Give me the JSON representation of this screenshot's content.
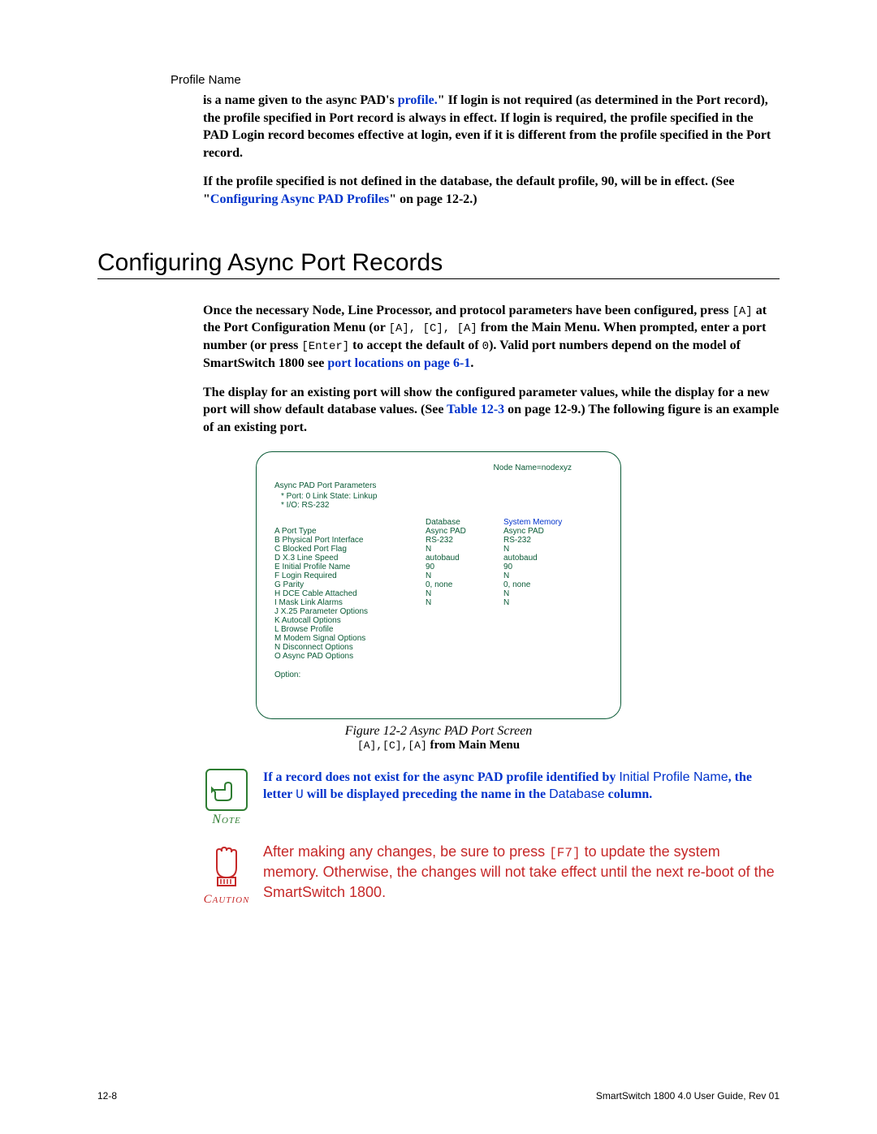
{
  "profileName": {
    "label": "Profile Name",
    "para1_a": "is a name given to the async PAD's",
    "para1_profile": " profile.",
    "para1_b": "\" If login is not required (as determined in the Port record), the profile specified in Port record is always in effect. If login is required, the profile specified in the PAD Login record becomes effective at login, even if it is different from the profile specified in the Port record.",
    "para2_a": "If the profile specified is not defined in the database, the default profile,",
    "para2_90": " 90",
    "para2_b": ", will be in effect. (See \"",
    "para2_link": "Configuring Async PAD Profiles",
    "para2_c": "\" on page 12-2.)"
  },
  "section": {
    "title": "Configuring Async Port Records",
    "p1_a": "Once the necessary Node, Line Processor, and protocol parameters have been configured, press ",
    "p1_key1": "[A]",
    "p1_b": " at the Port Configuration Menu (or ",
    "p1_key2": "[A], [C], [A]",
    "p1_c": " from the Main Menu. When prompted, enter a port number (or press ",
    "p1_key3": "[Enter]",
    "p1_d": " to accept the default of ",
    "p1_zero": "0",
    "p1_e": "). Valid port numbers depend on the model of SmartSwitch 1800 see ",
    "p1_link": "port locations on page 6-1",
    "p1_f": ".",
    "p2_a": "The display for an existing port will show the configured parameter values, while the display for a new port will show default database values. (See ",
    "p2_link": "Table 12-3",
    "p2_b": " on page 12-9.) The following figure is an example of an existing port."
  },
  "terminal": {
    "node": "Node Name=nodexyz",
    "title": "Async PAD Port Parameters",
    "sub1": "*   Port:  0    Link State:  Linkup",
    "sub2": "*   I/O: RS-232",
    "hdr_db": "Database",
    "hdr_sm": "System Memory",
    "rows": [
      {
        "k": "A",
        "l": "Port Type",
        "d": "Async PAD",
        "s": "Async PAD"
      },
      {
        "k": "B",
        "l": "Physical Port Interface",
        "d": "RS-232",
        "s": "RS-232"
      },
      {
        "k": "C",
        "l": "Blocked Port Flag",
        "d": "N",
        "s": "N"
      },
      {
        "k": "D",
        "l": "X.3 Line Speed",
        "d": " autobaud",
        "s": " autobaud"
      },
      {
        "k": "E",
        "l": "Initial Profile Name",
        "d": "90",
        "s": "90"
      },
      {
        "k": "F",
        "l": "Login Required",
        "d": "N",
        "s": "N"
      },
      {
        "k": "G",
        "l": "Parity",
        "d": "0, none",
        "s": "0, none"
      },
      {
        "k": "H",
        "l": "DCE Cable Attached",
        "d": " N",
        "s": "N"
      },
      {
        "k": "I",
        "l": "Mask Link Alarms",
        "d": "N",
        "s": "N"
      },
      {
        "k": "J",
        "l": "X.25 Parameter Options",
        "d": "",
        "s": ""
      },
      {
        "k": "K",
        "l": "Autocall Options",
        "d": "",
        "s": ""
      },
      {
        "k": "L",
        "l": "Browse Profile",
        "d": "",
        "s": ""
      },
      {
        "k": "M",
        "l": "Modem Signal Options",
        "d": "",
        "s": ""
      },
      {
        "k": "N",
        "l": "Disconnect Options",
        "d": "",
        "s": ""
      },
      {
        "k": "O",
        "l": "Async PAD Options",
        "d": "",
        "s": ""
      }
    ],
    "option": "Option:"
  },
  "figure": {
    "caption": "Figure 12-2   Async PAD Port Screen",
    "sub_keys": "[A],[C],[A]",
    "sub_tail": " from Main Menu"
  },
  "note": {
    "label": "Note",
    "a": "If a record does not exist for the async PAD profile identified by ",
    "initial": "Initial Profile Name",
    "b": ", the letter ",
    "u": "U",
    "c": " will be displayed preceding the name in the ",
    "db": "Database",
    "d": " column."
  },
  "caution": {
    "label": "Caution",
    "a": "After making any changes, be sure to press ",
    "key": "[F7]",
    "b": " to update the system memory. Otherwise, the changes will not take effect until the next re-boot of the SmartSwitch 1800."
  },
  "footer": {
    "left": "12-8",
    "right": "SmartSwitch 1800 4.0 User Guide, Rev 01"
  }
}
